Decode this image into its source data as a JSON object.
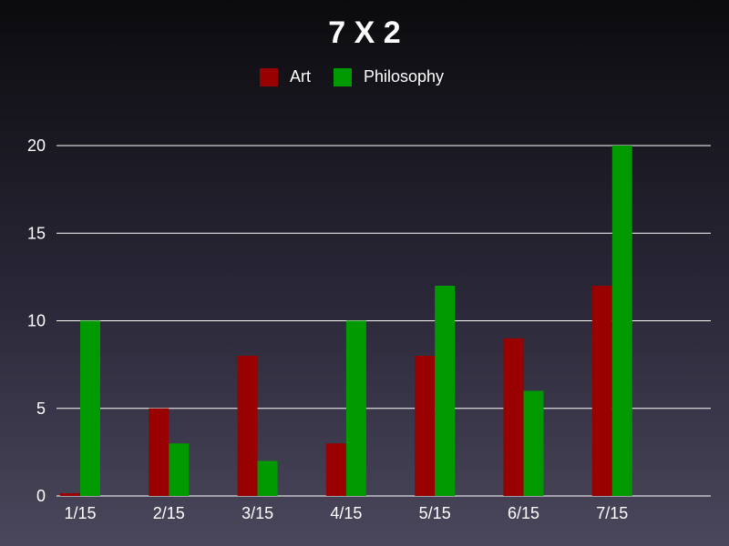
{
  "chart_data": {
    "type": "bar",
    "title": "7 X 2",
    "xlabel": "",
    "ylabel": "",
    "categories": [
      "1/15",
      "2/15",
      "3/15",
      "4/15",
      "5/15",
      "6/15",
      "7/15"
    ],
    "series": [
      {
        "name": "Art",
        "color": "#990000",
        "values": [
          0,
          5,
          8,
          3,
          8,
          9,
          12
        ]
      },
      {
        "name": "Philosophy",
        "color": "#009900",
        "values": [
          10,
          3,
          2,
          10,
          12,
          6,
          20
        ]
      }
    ],
    "ylim": [
      0,
      20
    ],
    "yticks": [
      0,
      5,
      10,
      15,
      20
    ],
    "grid": true,
    "legend_position": "top"
  }
}
